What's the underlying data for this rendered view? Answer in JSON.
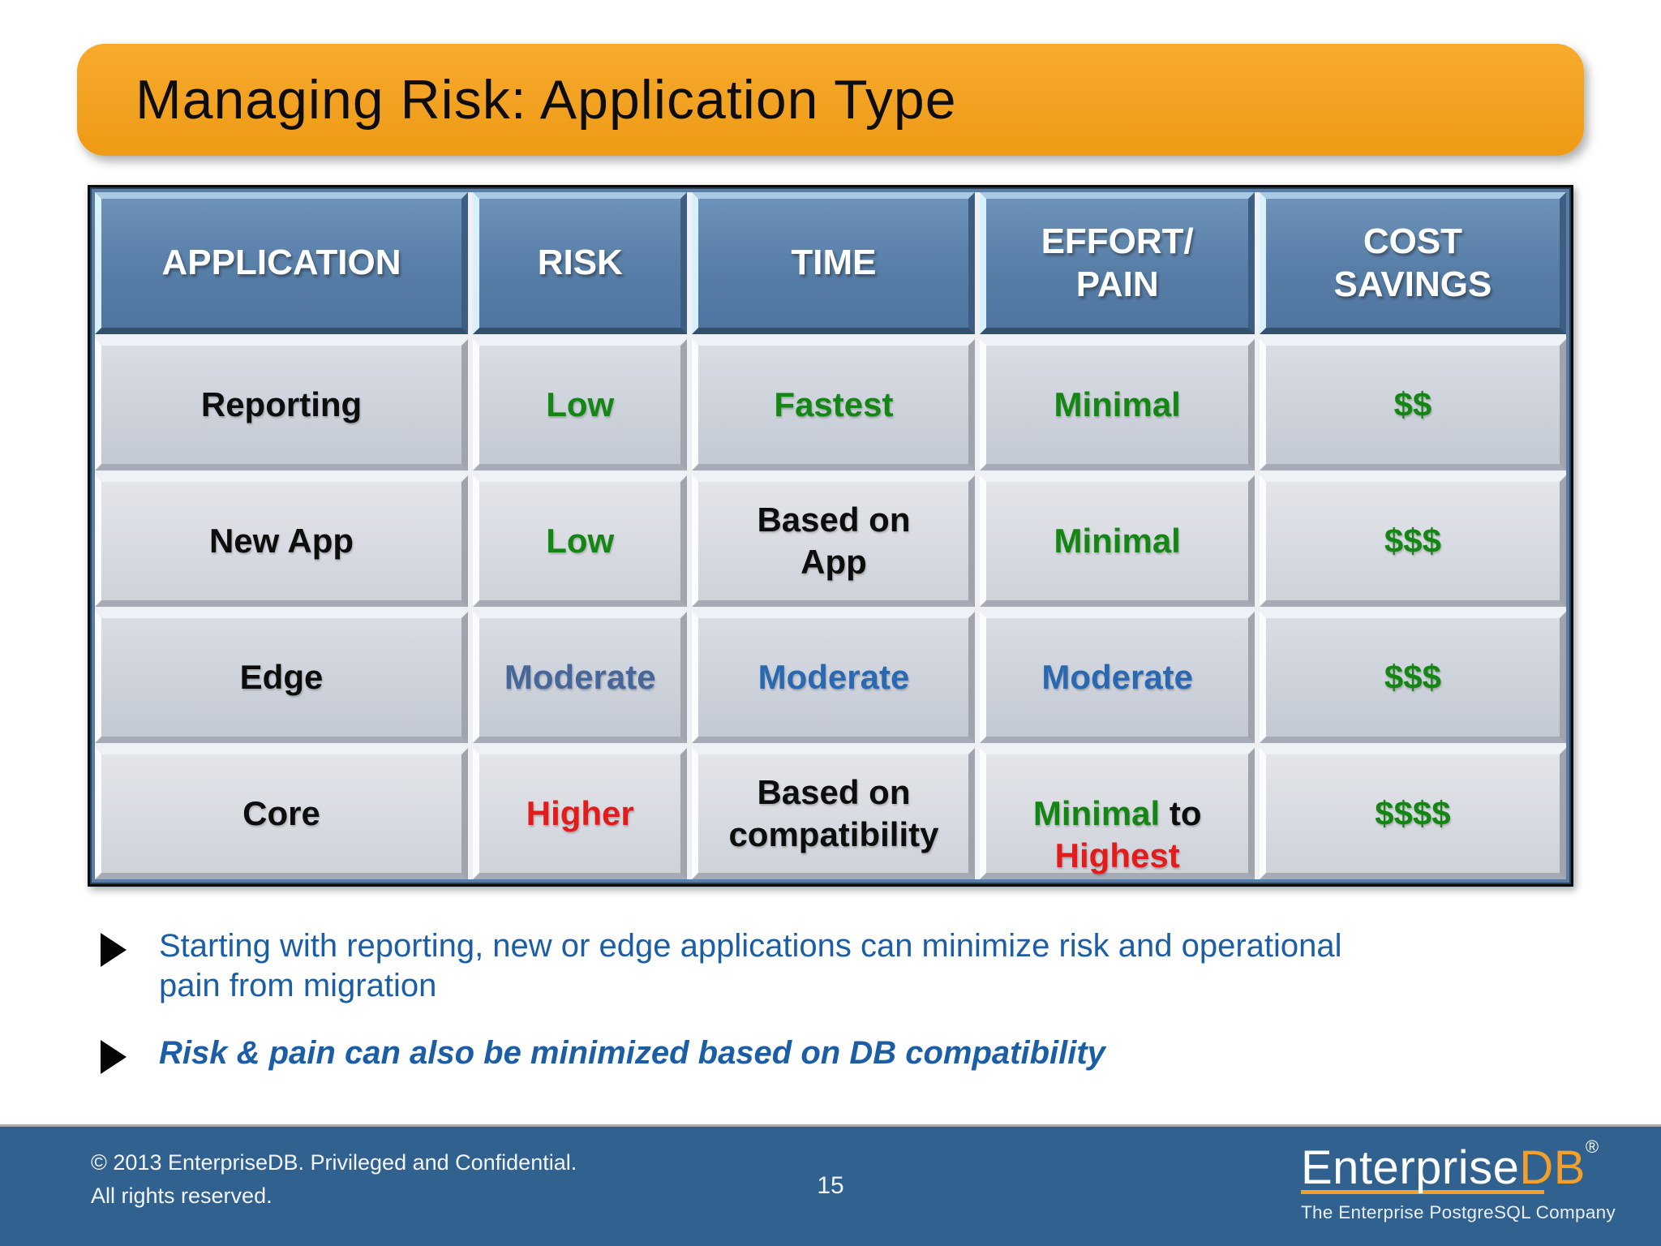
{
  "slide": {
    "title": "Managing Risk: Application Type",
    "accent_orange": "#f2a121",
    "header_blue": "#5b80aa",
    "footer_blue": "#30618f",
    "bullet_blue": "#1b5ea6"
  },
  "table": {
    "headers": [
      {
        "label": "APPLICATION"
      },
      {
        "label": "RISK"
      },
      {
        "label": "TIME"
      },
      {
        "label": "EFFORT/\nPAIN"
      },
      {
        "label": "COST\nSAVINGS"
      }
    ],
    "rows": [
      {
        "cells": [
          {
            "text": "Reporting",
            "color": "#0d0d0d"
          },
          {
            "text": "Low",
            "color": "#148614"
          },
          {
            "text": "Fastest",
            "color": "#148614"
          },
          {
            "text": "Minimal",
            "color": "#148614"
          },
          {
            "text": "$$",
            "color": "#148614"
          }
        ]
      },
      {
        "cells": [
          {
            "text": "New App",
            "color": "#0d0d0d"
          },
          {
            "text": "Low",
            "color": "#148614"
          },
          {
            "text": "Based on\nApp",
            "color": "#0d0d0d"
          },
          {
            "text": "Minimal",
            "color": "#148614"
          },
          {
            "text": "$$$",
            "color": "#148614"
          }
        ]
      },
      {
        "cells": [
          {
            "text": "Edge",
            "color": "#0d0d0d"
          },
          {
            "text": "Moderate",
            "color": "#47669a"
          },
          {
            "text": "Moderate",
            "color": "#2a69b2"
          },
          {
            "text": "Moderate",
            "color": "#2a69b2"
          },
          {
            "text": "$$$",
            "color": "#148614"
          }
        ]
      },
      {
        "cells": [
          {
            "text": "Core",
            "color": "#0d0d0d"
          },
          {
            "text": "Higher",
            "color": "#e31b1b"
          },
          {
            "text": "Based on\ncompatibility",
            "color": "#0d0d0d"
          },
          {
            "parts": [
              {
                "text": "Minimal",
                "color": "#148614"
              },
              {
                "text": " to\n",
                "color": "#0d0d0d"
              },
              {
                "text": "Highest",
                "color": "#e31b1b"
              }
            ]
          },
          {
            "text": "$$$$",
            "color": "#148614"
          }
        ]
      }
    ]
  },
  "bullets": [
    {
      "text": "Starting with reporting, new or edge applications can minimize risk and operational pain from migration"
    },
    {
      "text": "Risk & pain can also be minimized based on DB compatibility"
    }
  ],
  "footer": {
    "copyright_line1": "© 2013 EnterpriseDB. Privileged and Confidential.",
    "copyright_line2": "All rights reserved.",
    "page_number": "15",
    "logo": {
      "part1": "Enterprise",
      "part2": "DB",
      "registered": "®",
      "tagline": "The Enterprise PostgreSQL Company"
    }
  }
}
